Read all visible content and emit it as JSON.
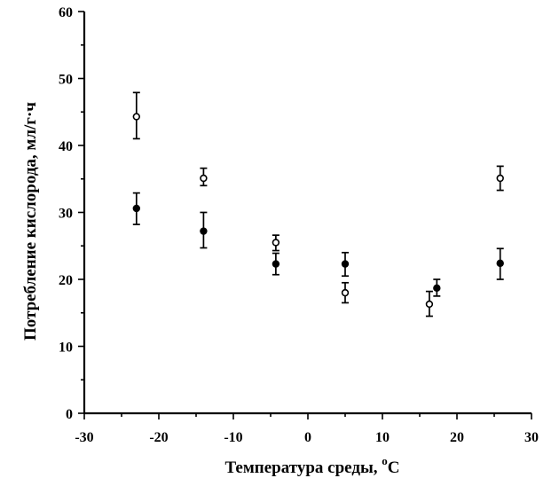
{
  "chart_data": {
    "type": "scatter",
    "title": "",
    "xlabel": "Температура среды, ",
    "xlabel_sup": "o",
    "xlabel_unit": "C",
    "ylabel": "Потребление кислорода, мл/г·ч",
    "xlim": [
      -30,
      30
    ],
    "ylim": [
      0,
      60
    ],
    "x_ticks": [
      -30,
      -20,
      -10,
      0,
      10,
      20,
      30
    ],
    "x_tick_labels": [
      "-30",
      "-20",
      "-10",
      "0",
      "10",
      "20",
      "30"
    ],
    "y_ticks": [
      0,
      10,
      20,
      30,
      40,
      50,
      60
    ],
    "y_tick_labels": [
      "0",
      "10",
      "20",
      "30",
      "40",
      "50",
      "60"
    ],
    "grid": false,
    "legend": false,
    "series": [
      {
        "marker": "open-circle",
        "points": [
          {
            "x": -23,
            "y": 44.3,
            "err_low": 41.0,
            "err_high": 47.9
          },
          {
            "x": -14,
            "y": 35.1,
            "err_low": 34.0,
            "err_high": 36.6
          },
          {
            "x": -4.3,
            "y": 25.5,
            "err_low": 24.3,
            "err_high": 26.6
          },
          {
            "x": 5,
            "y": 18.0,
            "err_low": 16.5,
            "err_high": 19.5
          },
          {
            "x": 16.3,
            "y": 16.3,
            "err_low": 14.5,
            "err_high": 18.2
          },
          {
            "x": 25.8,
            "y": 35.1,
            "err_low": 33.3,
            "err_high": 36.9
          }
        ]
      },
      {
        "marker": "filled-circle",
        "points": [
          {
            "x": -23,
            "y": 30.6,
            "err_low": 28.2,
            "err_high": 32.9
          },
          {
            "x": -14,
            "y": 27.2,
            "err_low": 24.7,
            "err_high": 30.0
          },
          {
            "x": -4.3,
            "y": 22.3,
            "err_low": 20.7,
            "err_high": 23.9
          },
          {
            "x": 5,
            "y": 22.3,
            "err_low": 20.5,
            "err_high": 24.0
          },
          {
            "x": 17.3,
            "y": 18.7,
            "err_low": 17.5,
            "err_high": 20.0
          },
          {
            "x": 25.8,
            "y": 22.4,
            "err_low": 20.0,
            "err_high": 24.6
          }
        ]
      }
    ]
  }
}
